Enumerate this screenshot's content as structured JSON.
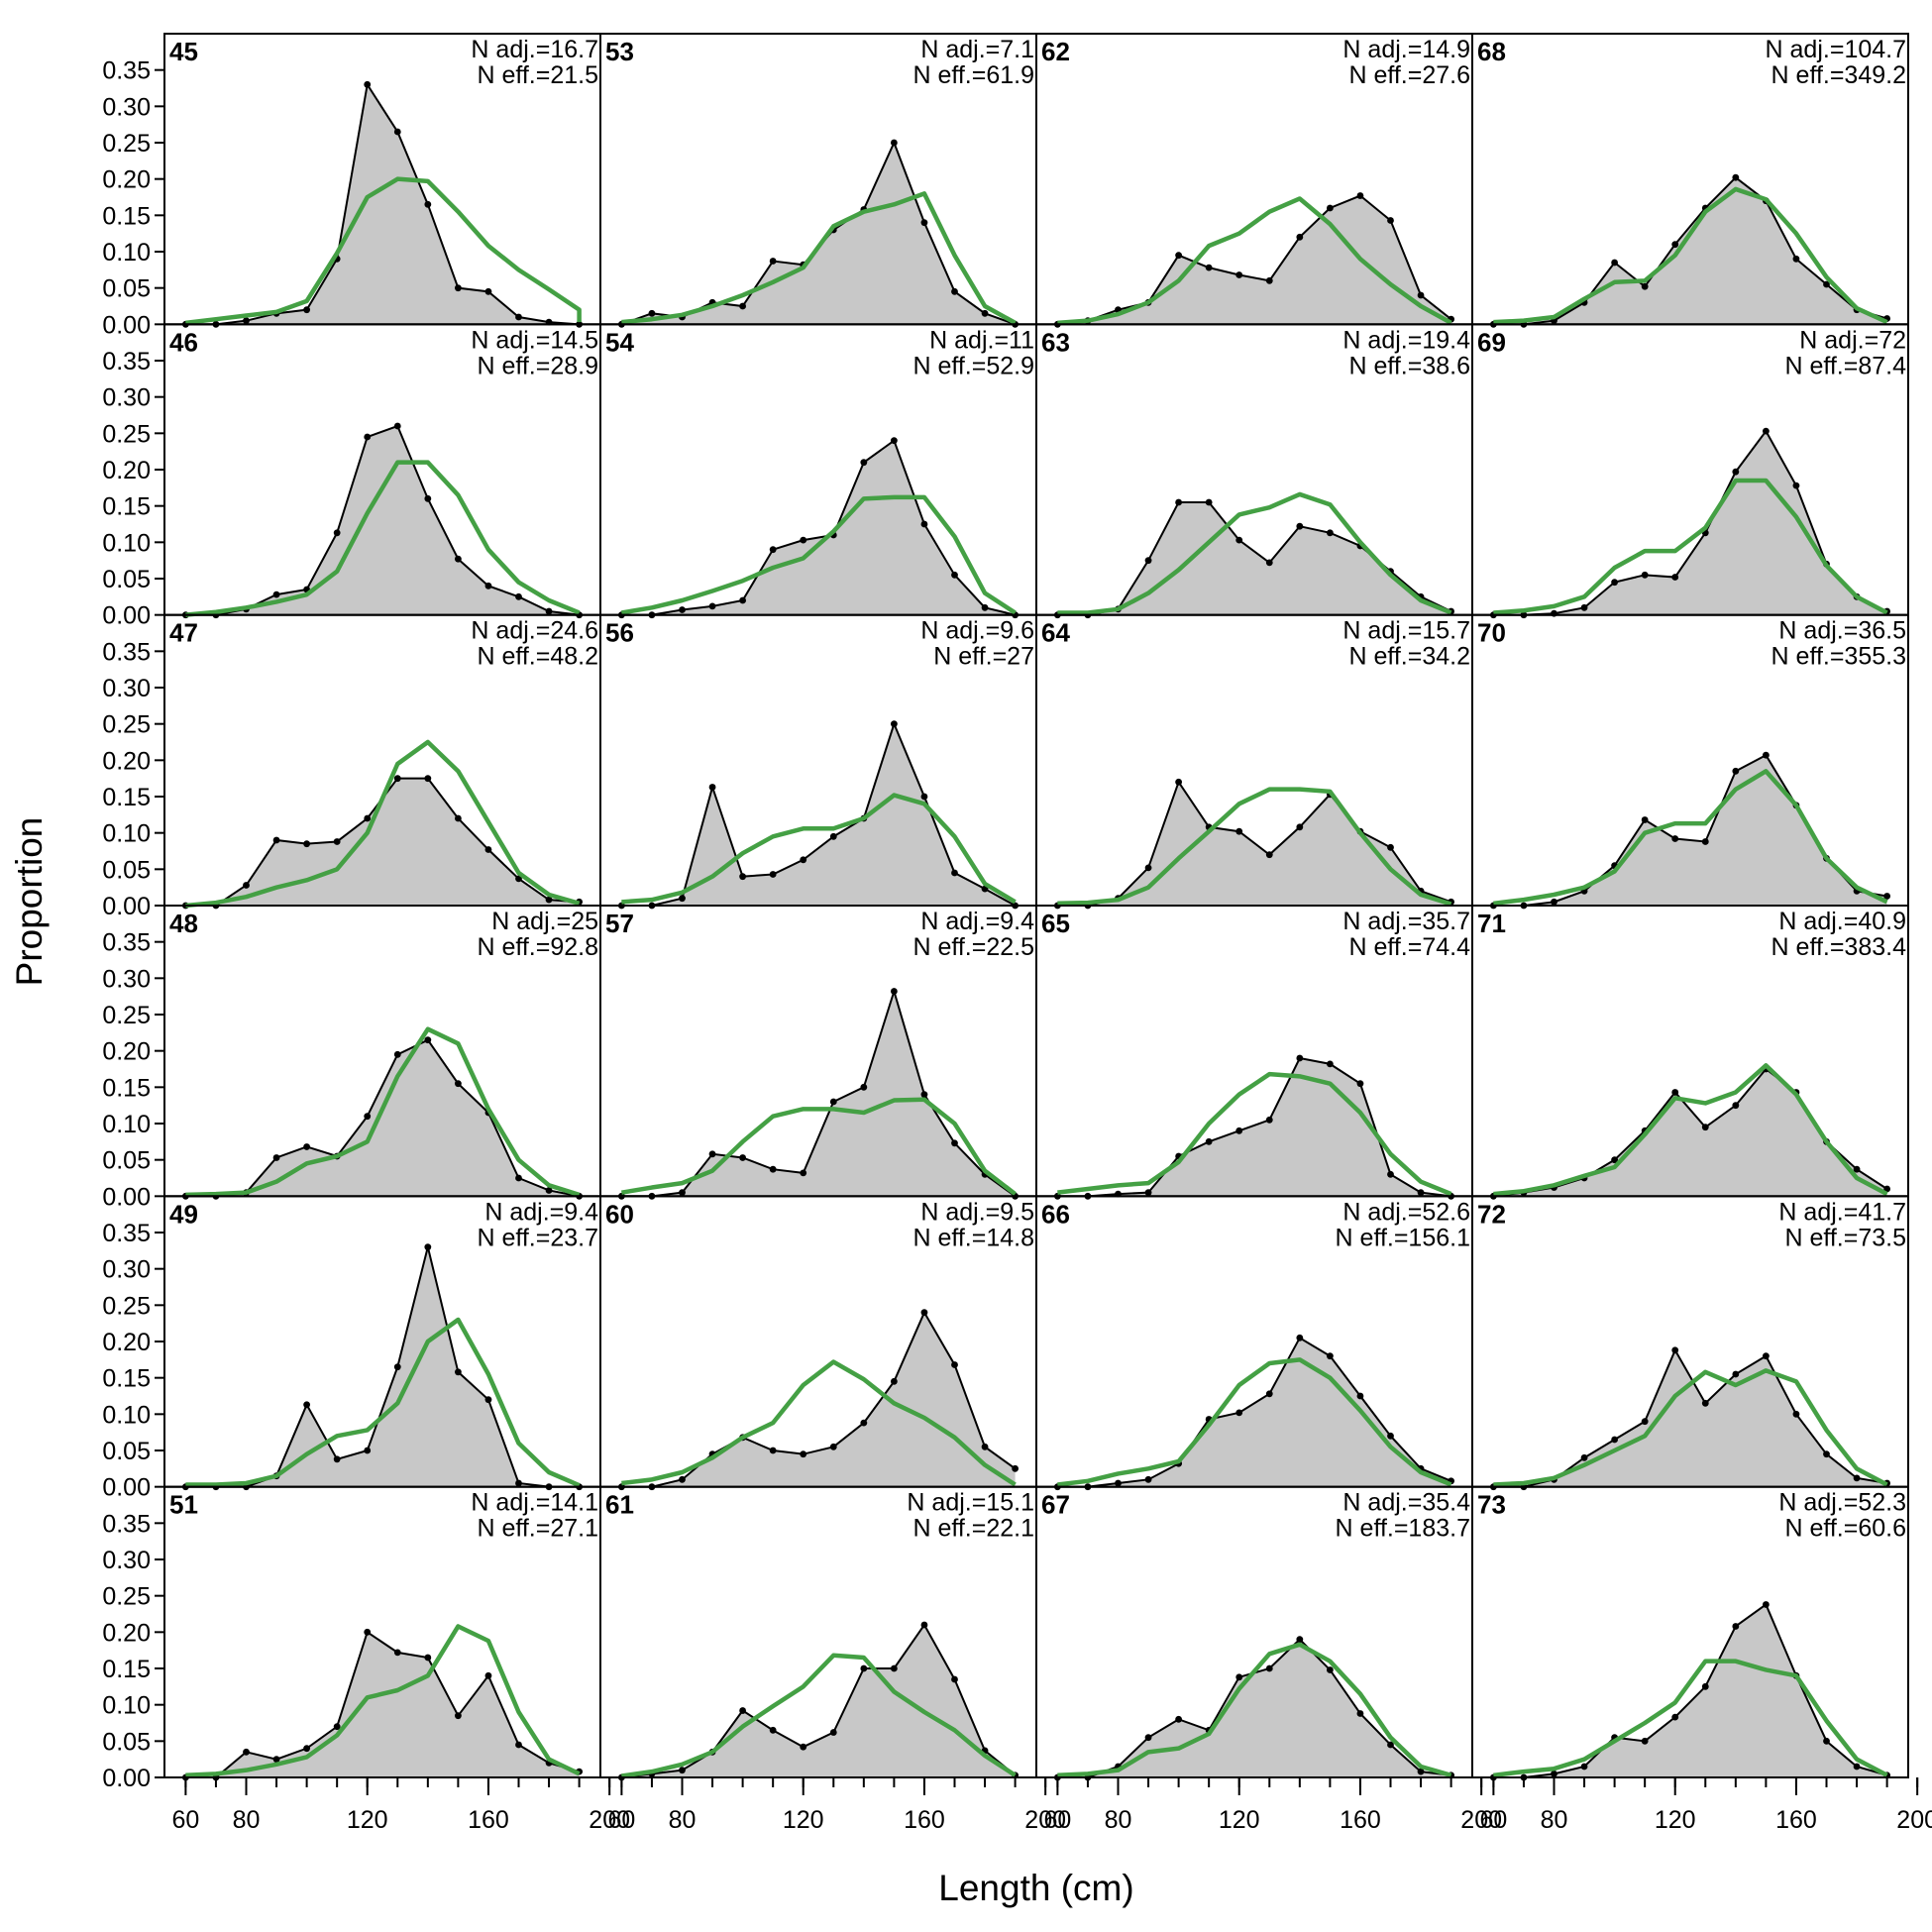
{
  "figure": {
    "ylabel": "Proportion",
    "xlabel": "Length (cm)"
  },
  "chart_data": {
    "type": "area",
    "x": [
      60,
      70,
      80,
      90,
      100,
      110,
      120,
      130,
      140,
      150,
      160,
      170,
      180,
      190
    ],
    "xlim": [
      53,
      197
    ],
    "ylim": [
      0,
      0.4
    ],
    "xticks": [
      60,
      80,
      120,
      160,
      200
    ],
    "yticks": [
      0,
      0.05,
      0.1,
      0.15,
      0.2,
      0.25,
      0.3,
      0.35
    ],
    "ytick_labels": [
      "0.00",
      "0.05",
      "0.10",
      "0.15",
      "0.20",
      "0.25",
      "0.30",
      "0.35"
    ],
    "xtick_labels": [
      "60",
      "80",
      "120",
      "160",
      "200"
    ],
    "grid": false,
    "colors": {
      "observed_fill": "#c8c8c8",
      "observed_line": "#000000",
      "expected_line": "#44a044",
      "zero_line": "#b4b4b4"
    },
    "layout": {
      "rows": 6,
      "cols": 4,
      "order": "column-major"
    },
    "panels": [
      {
        "id": "45",
        "n_adj": "N adj.=16.7",
        "n_eff": "N eff.=21.5",
        "observed": [
          0,
          0,
          0.005,
          0.015,
          0.02,
          0.09,
          0.33,
          0.265,
          0.165,
          0.05,
          0.045,
          0.01,
          0.003,
          0
        ],
        "expected": [
          0.002,
          0.007,
          0.012,
          0.017,
          0.032,
          0.098,
          0.175,
          0.2,
          0.197,
          0.155,
          0.108,
          0.075,
          0.048,
          0.02,
          0.003
        ],
        "expected_x": [
          60,
          70,
          80,
          90,
          100,
          110,
          120,
          130,
          140,
          150,
          160,
          170,
          180,
          190,
          190
        ]
      },
      {
        "id": "46",
        "n_adj": "N adj.=14.5",
        "n_eff": "N eff.=28.9",
        "observed": [
          0,
          0,
          0.008,
          0.028,
          0.035,
          0.113,
          0.245,
          0.26,
          0.16,
          0.077,
          0.04,
          0.025,
          0.005,
          0
        ],
        "expected": [
          0,
          0.004,
          0.01,
          0.018,
          0.028,
          0.06,
          0.14,
          0.21,
          0.21,
          0.165,
          0.09,
          0.045,
          0.02,
          0.003
        ]
      },
      {
        "id": "47",
        "n_adj": "N adj.=24.6",
        "n_eff": "N eff.=48.2",
        "observed": [
          0,
          0,
          0.028,
          0.09,
          0.085,
          0.088,
          0.12,
          0.175,
          0.175,
          0.12,
          0.077,
          0.037,
          0.008,
          0.005
        ],
        "expected": [
          0,
          0.004,
          0.012,
          0.025,
          0.035,
          0.05,
          0.1,
          0.195,
          0.225,
          0.185,
          0.115,
          0.045,
          0.015,
          0.003
        ]
      },
      {
        "id": "48",
        "n_adj": "N adj.=25",
        "n_eff": "N eff.=92.8",
        "observed": [
          0,
          0,
          0.005,
          0.053,
          0.068,
          0.055,
          0.11,
          0.195,
          0.215,
          0.155,
          0.115,
          0.025,
          0.008,
          0
        ],
        "expected": [
          0.002,
          0.003,
          0.005,
          0.02,
          0.045,
          0.055,
          0.075,
          0.165,
          0.23,
          0.21,
          0.12,
          0.05,
          0.015,
          0.002
        ]
      },
      {
        "id": "49",
        "n_adj": "N adj.=9.4",
        "n_eff": "N eff.=23.7",
        "observed": [
          0,
          0,
          0,
          0.015,
          0.113,
          0.038,
          0.05,
          0.165,
          0.33,
          0.158,
          0.12,
          0.005,
          0,
          0
        ],
        "expected": [
          0.003,
          0.003,
          0.005,
          0.015,
          0.045,
          0.07,
          0.078,
          0.115,
          0.2,
          0.23,
          0.155,
          0.06,
          0.02,
          0.002
        ]
      },
      {
        "id": "51",
        "n_adj": "N adj.=14.1",
        "n_eff": "N eff.=27.1",
        "observed": [
          0,
          0,
          0.035,
          0.025,
          0.04,
          0.07,
          0.2,
          0.172,
          0.165,
          0.085,
          0.14,
          0.045,
          0.02,
          0.008
        ],
        "expected": [
          0.003,
          0.005,
          0.01,
          0.018,
          0.028,
          0.058,
          0.11,
          0.12,
          0.14,
          0.208,
          0.188,
          0.09,
          0.025,
          0.005
        ]
      },
      {
        "id": "53",
        "n_adj": "N adj.=7.1",
        "n_eff": "N eff.=61.9",
        "observed": [
          0,
          0.015,
          0.01,
          0.03,
          0.025,
          0.087,
          0.082,
          0.13,
          0.158,
          0.25,
          0.14,
          0.045,
          0.015,
          0
        ],
        "expected": [
          0.003,
          0.007,
          0.013,
          0.025,
          0.04,
          0.058,
          0.078,
          0.135,
          0.155,
          0.165,
          0.18,
          0.095,
          0.025,
          0.002
        ]
      },
      {
        "id": "54",
        "n_adj": "N adj.=11",
        "n_eff": "N eff.=52.9",
        "observed": [
          0,
          0,
          0.007,
          0.012,
          0.02,
          0.09,
          0.103,
          0.11,
          0.21,
          0.24,
          0.125,
          0.055,
          0.01,
          0
        ],
        "expected": [
          0.003,
          0.01,
          0.02,
          0.033,
          0.047,
          0.065,
          0.078,
          0.115,
          0.16,
          0.162,
          0.162,
          0.108,
          0.03,
          0.003
        ]
      },
      {
        "id": "56",
        "n_adj": "N adj.=9.6",
        "n_eff": "N eff.=27",
        "observed": [
          0,
          0,
          0.01,
          0.163,
          0.04,
          0.043,
          0.063,
          0.095,
          0.12,
          0.25,
          0.15,
          0.045,
          0.023,
          0
        ],
        "expected": [
          0.005,
          0.008,
          0.018,
          0.04,
          0.072,
          0.095,
          0.106,
          0.106,
          0.12,
          0.152,
          0.14,
          0.095,
          0.03,
          0.005
        ]
      },
      {
        "id": "57",
        "n_adj": "N adj.=9.4",
        "n_eff": "N eff.=22.5",
        "observed": [
          0,
          0,
          0.005,
          0.058,
          0.053,
          0.037,
          0.032,
          0.13,
          0.15,
          0.282,
          0.14,
          0.073,
          0.03,
          0
        ],
        "expected": [
          0.005,
          0.012,
          0.018,
          0.035,
          0.075,
          0.11,
          0.12,
          0.12,
          0.115,
          0.132,
          0.133,
          0.1,
          0.035,
          0.003
        ]
      },
      {
        "id": "60",
        "n_adj": "N adj.=9.5",
        "n_eff": "N eff.=14.8",
        "observed": [
          0,
          0,
          0.01,
          0.045,
          0.068,
          0.05,
          0.045,
          0.055,
          0.088,
          0.145,
          0.24,
          0.168,
          0.055,
          0.025
        ],
        "expected": [
          0.005,
          0.01,
          0.02,
          0.04,
          0.068,
          0.088,
          0.14,
          0.172,
          0.148,
          0.115,
          0.095,
          0.068,
          0.03,
          0.003
        ]
      },
      {
        "id": "61",
        "n_adj": "N adj.=15.1",
        "n_eff": "N eff.=22.1",
        "observed": [
          0,
          0.005,
          0.01,
          0.035,
          0.092,
          0.065,
          0.042,
          0.062,
          0.15,
          0.15,
          0.21,
          0.135,
          0.037,
          0.003
        ],
        "expected": [
          0.002,
          0.008,
          0.018,
          0.035,
          0.07,
          0.098,
          0.125,
          0.168,
          0.165,
          0.118,
          0.09,
          0.065,
          0.03,
          0.003
        ]
      },
      {
        "id": "62",
        "n_adj": "N adj.=14.9",
        "n_eff": "N eff.=27.6",
        "observed": [
          0,
          0.005,
          0.02,
          0.03,
          0.095,
          0.078,
          0.068,
          0.06,
          0.12,
          0.16,
          0.177,
          0.143,
          0.04,
          0.007
        ],
        "expected": [
          0.002,
          0.005,
          0.014,
          0.03,
          0.06,
          0.108,
          0.125,
          0.155,
          0.173,
          0.138,
          0.09,
          0.055,
          0.025,
          0.002
        ]
      },
      {
        "id": "63",
        "n_adj": "N adj.=19.4",
        "n_eff": "N eff.=38.6",
        "observed": [
          0,
          0,
          0.008,
          0.075,
          0.155,
          0.155,
          0.103,
          0.072,
          0.122,
          0.113,
          0.095,
          0.06,
          0.025,
          0.005
        ],
        "expected": [
          0.003,
          0.003,
          0.008,
          0.03,
          0.062,
          0.1,
          0.138,
          0.148,
          0.166,
          0.152,
          0.1,
          0.055,
          0.02,
          0.003
        ]
      },
      {
        "id": "64",
        "n_adj": "N adj.=15.7",
        "n_eff": "N eff.=34.2",
        "observed": [
          0,
          0,
          0.01,
          0.052,
          0.17,
          0.108,
          0.102,
          0.07,
          0.108,
          0.153,
          0.102,
          0.08,
          0.02,
          0.005
        ],
        "expected": [
          0.003,
          0.004,
          0.008,
          0.025,
          0.065,
          0.102,
          0.14,
          0.16,
          0.16,
          0.157,
          0.1,
          0.05,
          0.015,
          0.002
        ]
      },
      {
        "id": "65",
        "n_adj": "N adj.=35.7",
        "n_eff": "N eff.=74.4",
        "observed": [
          0,
          0,
          0.003,
          0.005,
          0.055,
          0.075,
          0.09,
          0.105,
          0.19,
          0.182,
          0.155,
          0.03,
          0.005,
          0
        ],
        "expected": [
          0.005,
          0.01,
          0.015,
          0.018,
          0.047,
          0.1,
          0.14,
          0.168,
          0.165,
          0.155,
          0.115,
          0.058,
          0.02,
          0.003
        ]
      },
      {
        "id": "66",
        "n_adj": "N adj.=52.6",
        "n_eff": "N eff.=156.1",
        "observed": [
          0,
          0,
          0.005,
          0.01,
          0.032,
          0.093,
          0.102,
          0.128,
          0.205,
          0.18,
          0.125,
          0.07,
          0.025,
          0.008
        ],
        "expected": [
          0.003,
          0.008,
          0.018,
          0.025,
          0.035,
          0.085,
          0.14,
          0.17,
          0.175,
          0.15,
          0.105,
          0.055,
          0.02,
          0.003
        ]
      },
      {
        "id": "67",
        "n_adj": "N adj.=35.4",
        "n_eff": "N eff.=183.7",
        "observed": [
          0,
          0,
          0.015,
          0.055,
          0.08,
          0.065,
          0.138,
          0.15,
          0.19,
          0.148,
          0.088,
          0.045,
          0.008,
          0.003
        ],
        "expected": [
          0.003,
          0.005,
          0.01,
          0.035,
          0.04,
          0.06,
          0.122,
          0.17,
          0.183,
          0.16,
          0.115,
          0.055,
          0.015,
          0.003
        ]
      },
      {
        "id": "68",
        "n_adj": "N adj.=104.7",
        "n_eff": "N eff.=349.2",
        "observed": [
          0,
          0,
          0.005,
          0.03,
          0.085,
          0.052,
          0.11,
          0.16,
          0.202,
          0.17,
          0.09,
          0.055,
          0.02,
          0.008
        ],
        "expected": [
          0.003,
          0.005,
          0.01,
          0.035,
          0.058,
          0.06,
          0.095,
          0.155,
          0.186,
          0.172,
          0.125,
          0.065,
          0.022,
          0.003
        ]
      },
      {
        "id": "69",
        "n_adj": "N adj.=72",
        "n_eff": "N eff.=87.4",
        "observed": [
          0,
          0,
          0.002,
          0.01,
          0.045,
          0.055,
          0.052,
          0.113,
          0.197,
          0.253,
          0.178,
          0.07,
          0.025,
          0.005
        ],
        "expected": [
          0.003,
          0.006,
          0.012,
          0.025,
          0.065,
          0.088,
          0.088,
          0.12,
          0.185,
          0.185,
          0.135,
          0.068,
          0.025,
          0.003
        ]
      },
      {
        "id": "70",
        "n_adj": "N adj.=36.5",
        "n_eff": "N eff.=355.3",
        "observed": [
          0,
          0,
          0.005,
          0.02,
          0.055,
          0.118,
          0.092,
          0.088,
          0.185,
          0.207,
          0.138,
          0.065,
          0.02,
          0.013
        ],
        "expected": [
          0.003,
          0.008,
          0.015,
          0.025,
          0.047,
          0.1,
          0.113,
          0.113,
          0.16,
          0.185,
          0.138,
          0.065,
          0.025,
          0.005
        ]
      },
      {
        "id": "71",
        "n_adj": "N adj.=40.9",
        "n_eff": "N eff.=383.4",
        "observed": [
          0,
          0.005,
          0.012,
          0.025,
          0.05,
          0.09,
          0.143,
          0.095,
          0.125,
          0.175,
          0.143,
          0.075,
          0.037,
          0.01
        ],
        "expected": [
          0.003,
          0.007,
          0.015,
          0.028,
          0.04,
          0.085,
          0.135,
          0.128,
          0.143,
          0.18,
          0.14,
          0.075,
          0.025,
          0.003
        ]
      },
      {
        "id": "72",
        "n_adj": "N adj.=41.7",
        "n_eff": "N eff.=73.5",
        "observed": [
          0,
          0,
          0.01,
          0.04,
          0.065,
          0.09,
          0.188,
          0.115,
          0.155,
          0.18,
          0.1,
          0.045,
          0.012,
          0.005
        ],
        "expected": [
          0.003,
          0.005,
          0.012,
          0.03,
          0.05,
          0.07,
          0.125,
          0.158,
          0.14,
          0.16,
          0.145,
          0.078,
          0.025,
          0.003
        ]
      },
      {
        "id": "73",
        "n_adj": "N adj.=52.3",
        "n_eff": "N eff.=60.6",
        "observed": [
          0,
          0,
          0.005,
          0.015,
          0.055,
          0.05,
          0.083,
          0.125,
          0.208,
          0.238,
          0.14,
          0.05,
          0.015,
          0.003
        ],
        "expected": [
          0.003,
          0.008,
          0.012,
          0.025,
          0.05,
          0.075,
          0.103,
          0.16,
          0.16,
          0.148,
          0.14,
          0.078,
          0.025,
          0.003
        ]
      }
    ]
  }
}
